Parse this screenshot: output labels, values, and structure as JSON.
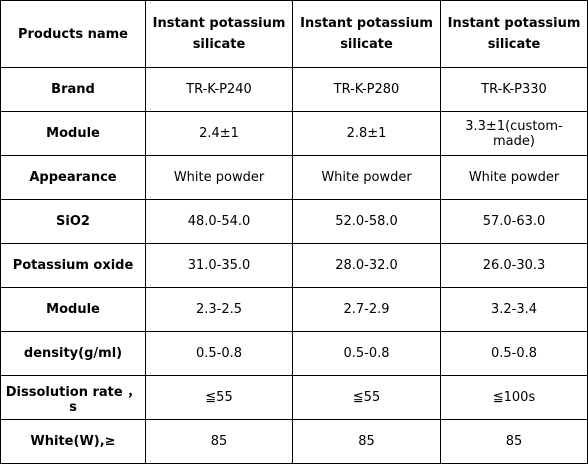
{
  "table": {
    "header": [
      "Products name",
      "Instant potassium silicate",
      "Instant potassium silicate",
      "Instant potassium silicate"
    ],
    "rows": [
      [
        "Brand",
        "TR-K-P240",
        "TR-K-P280",
        "TR-K-P330"
      ],
      [
        "Module",
        "2.4±1",
        "2.8±1",
        "3.3±1(custom-made)"
      ],
      [
        "Appearance",
        "White powder",
        "White powder",
        "White powder"
      ],
      [
        "SiO2",
        "48.0-54.0",
        "52.0-58.0",
        "57.0-63.0"
      ],
      [
        "Potassium oxide",
        "31.0-35.0",
        "28.0-32.0",
        "26.0-30.3"
      ],
      [
        "Module",
        "2.3-2.5",
        "2.7-2.9",
        "3.2-3.4"
      ],
      [
        "density(g/ml)",
        "0.5-0.8",
        "0.5-0.8",
        "0.5-0.8"
      ],
      [
        "Dissolution rate ， s",
        "≦55",
        "≦55",
        "≦100s"
      ],
      [
        "White(W),≥",
        "85",
        "85",
        "85"
      ]
    ]
  }
}
